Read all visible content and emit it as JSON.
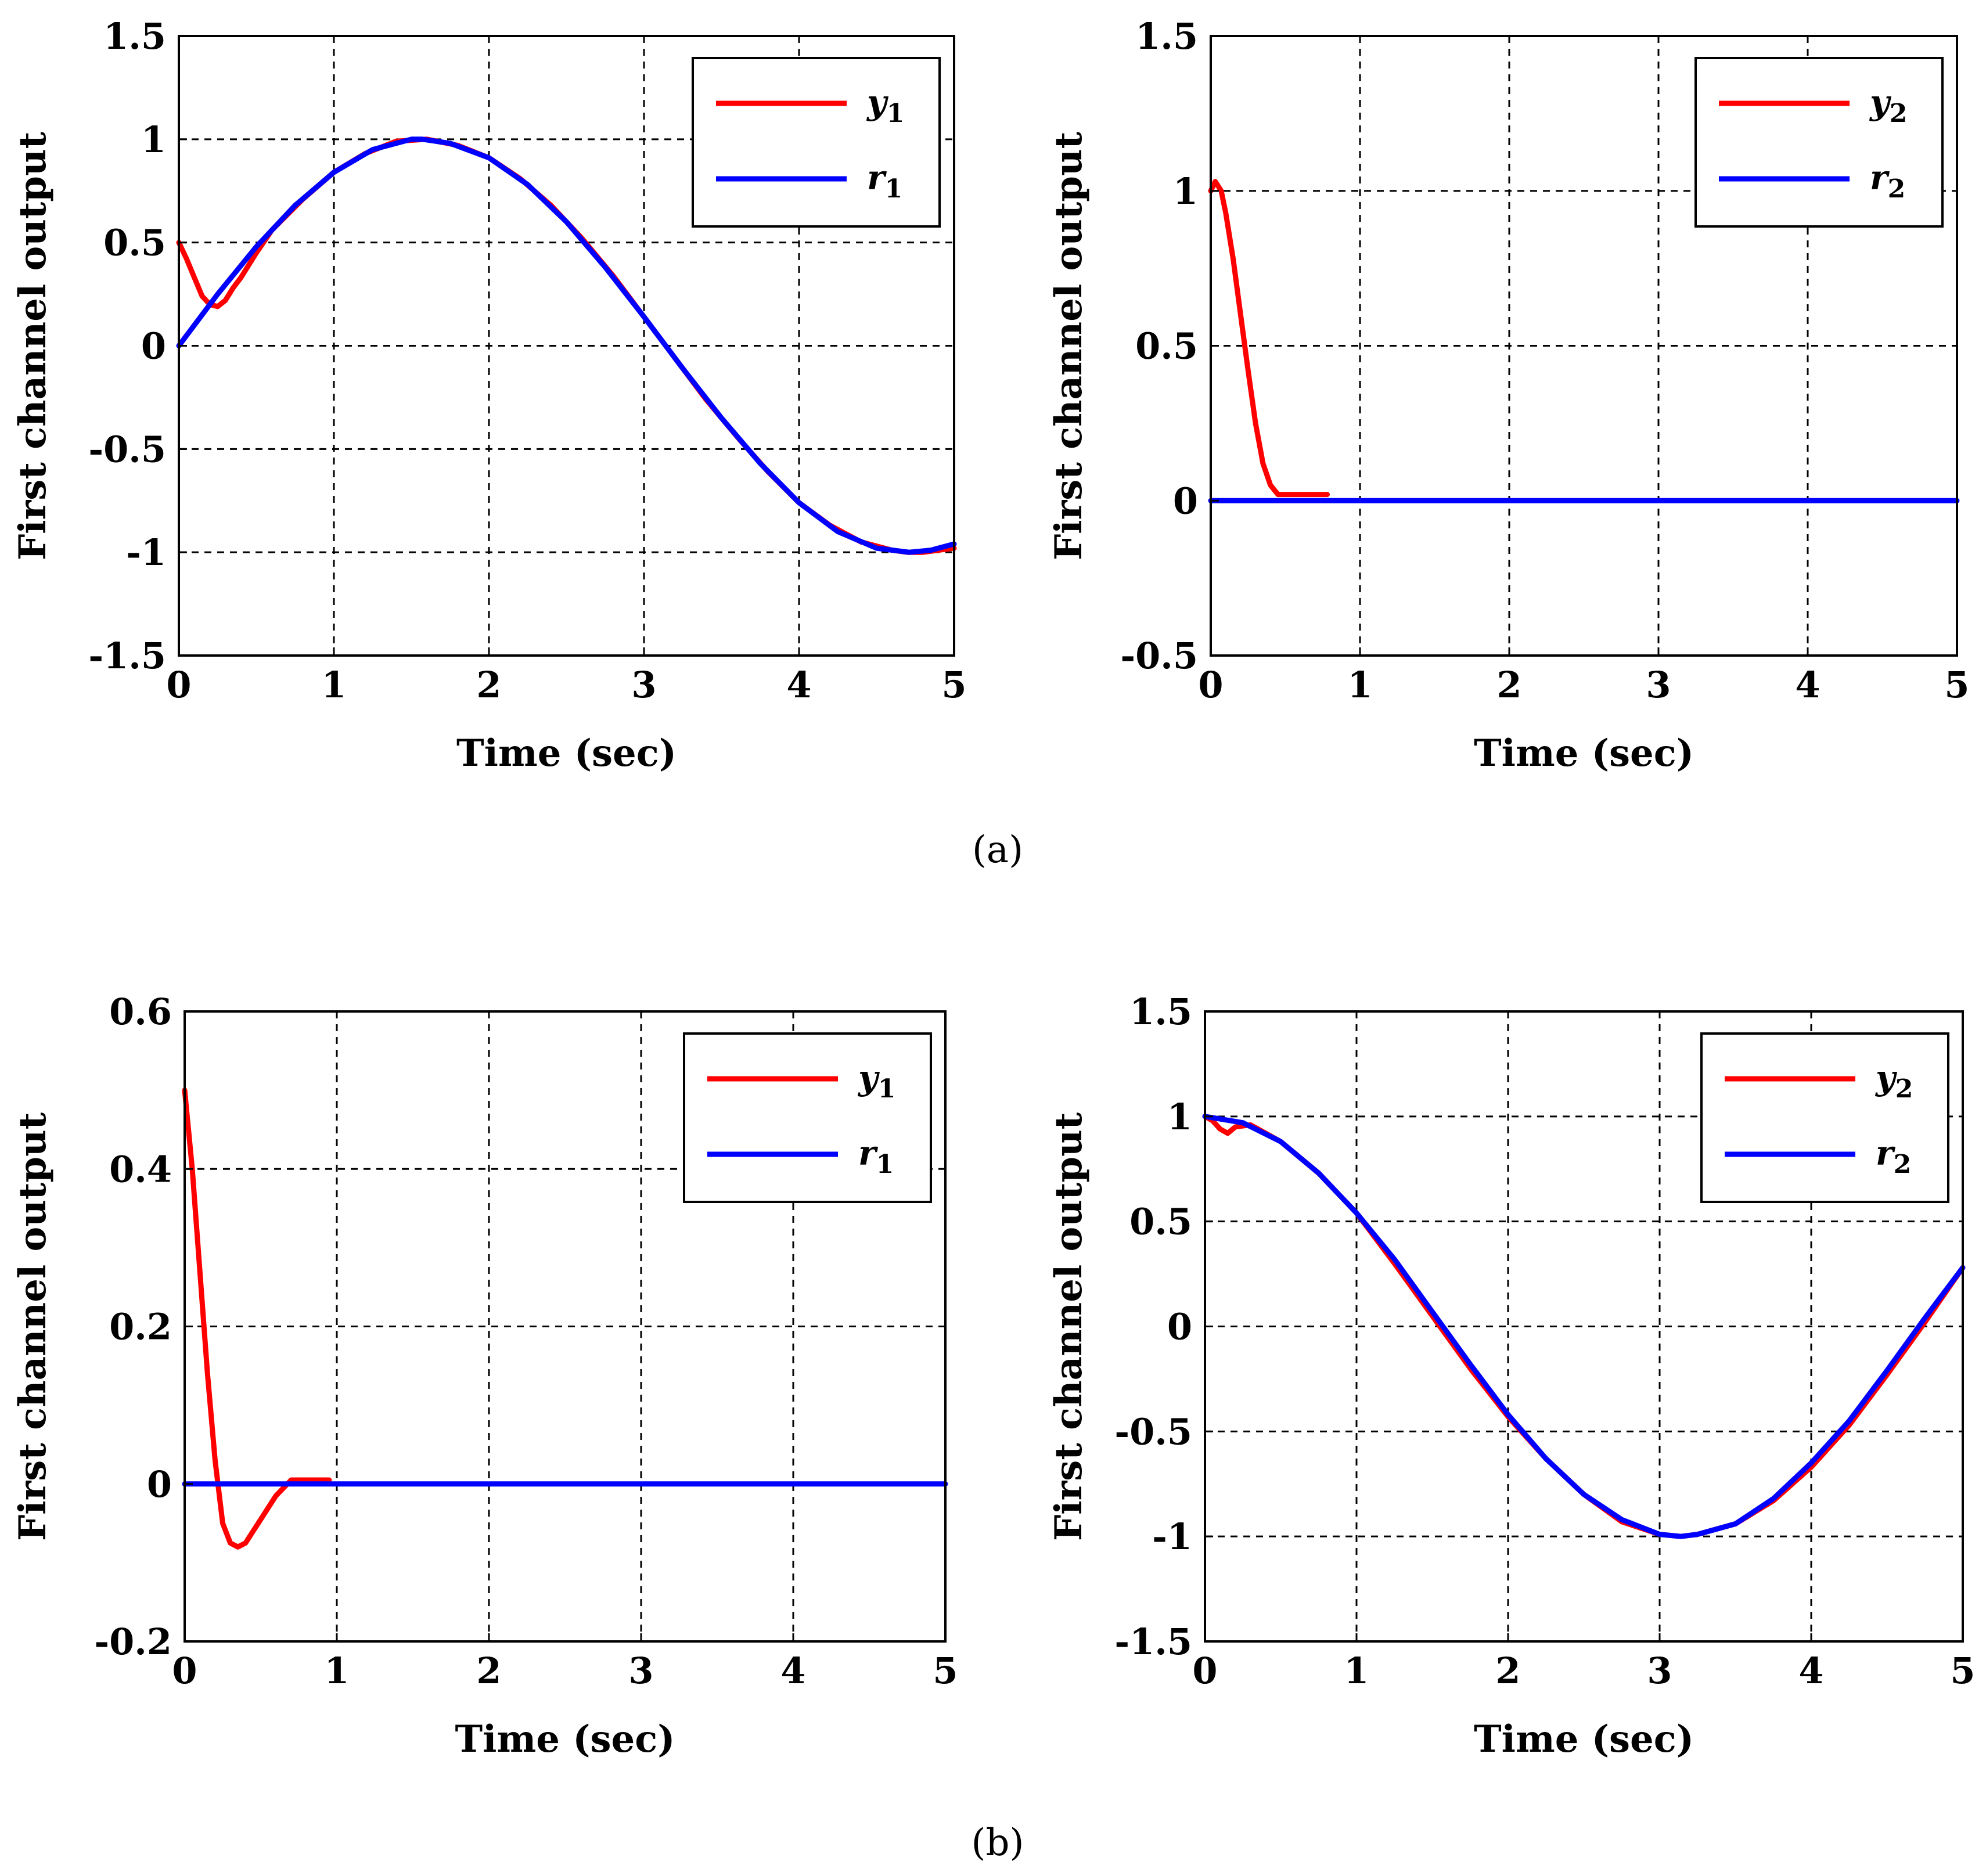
{
  "figure": {
    "captions": [
      "(a)",
      "(b)"
    ]
  },
  "colors": {
    "y": "#ff0000",
    "r": "#0000ff",
    "grid": "#000000",
    "axes": "#000000"
  },
  "chart_data": [
    {
      "id": "a1",
      "type": "line",
      "title": "",
      "xlabel": "Time (sec)",
      "ylabel": "First channel output",
      "xlim": [
        0,
        5
      ],
      "ylim": [
        -1.5,
        1.5
      ],
      "xticks": [
        0,
        1,
        2,
        3,
        4,
        5
      ],
      "xtick_labels": [
        "0",
        "1",
        "2",
        "3",
        "4",
        "5"
      ],
      "yticks": [
        1.5,
        1,
        0.5,
        0,
        -0.5,
        -1,
        -1.5
      ],
      "ytick_labels": [
        "1.5",
        "1",
        "0.5",
        "0",
        "-0.5",
        "-1",
        "-1.5"
      ],
      "grid": true,
      "legend": "top-right",
      "series": [
        {
          "name": "y",
          "sub": "1",
          "color": "#ff0000",
          "x": [
            0,
            0.05,
            0.1,
            0.15,
            0.2,
            0.25,
            0.3,
            0.35,
            0.4,
            0.5,
            0.6,
            0.8,
            1.0,
            1.2,
            1.4,
            1.6,
            1.8,
            2.0,
            2.2,
            2.4,
            2.6,
            2.8,
            3.0,
            3.2,
            3.4,
            3.6,
            3.8,
            4.0,
            4.2,
            4.4,
            4.6,
            4.7,
            4.8,
            4.9,
            5.0
          ],
          "y": [
            0.5,
            0.42,
            0.33,
            0.24,
            0.2,
            0.19,
            0.22,
            0.28,
            0.33,
            0.45,
            0.56,
            0.71,
            0.84,
            0.93,
            0.99,
            1.0,
            0.97,
            0.91,
            0.81,
            0.68,
            0.52,
            0.34,
            0.14,
            -0.06,
            -0.26,
            -0.44,
            -0.61,
            -0.76,
            -0.87,
            -0.95,
            -0.99,
            -1.0,
            -1.0,
            -0.99,
            -0.98
          ]
        },
        {
          "name": "r",
          "sub": "1",
          "color": "#0000ff",
          "x": [
            0,
            0.25,
            0.5,
            0.75,
            1.0,
            1.25,
            1.5,
            1.57,
            1.75,
            2.0,
            2.25,
            2.5,
            2.75,
            3.0,
            3.14,
            3.25,
            3.5,
            3.75,
            4.0,
            4.25,
            4.5,
            4.71,
            4.85,
            5.0
          ],
          "y": [
            0.0,
            0.25,
            0.48,
            0.68,
            0.84,
            0.95,
            1.0,
            1.0,
            0.98,
            0.91,
            0.78,
            0.6,
            0.38,
            0.14,
            0.0,
            -0.11,
            -0.35,
            -0.57,
            -0.76,
            -0.9,
            -0.98,
            -1.0,
            -0.99,
            -0.96
          ]
        }
      ]
    },
    {
      "id": "a2",
      "type": "line",
      "title": "",
      "xlabel": "Time (sec)",
      "ylabel": "First channel output",
      "xlim": [
        0,
        5
      ],
      "ylim": [
        -0.5,
        1.5
      ],
      "xticks": [
        0,
        1,
        2,
        3,
        4,
        5
      ],
      "xtick_labels": [
        "0",
        "1",
        "2",
        "3",
        "4",
        "5"
      ],
      "yticks": [
        1.5,
        1,
        0.5,
        0,
        -0.5
      ],
      "ytick_labels": [
        "1.5",
        "1",
        "0.5",
        "0",
        "-0.5"
      ],
      "grid": true,
      "legend": "top-right",
      "series": [
        {
          "name": "y",
          "sub": "2",
          "color": "#ff0000",
          "x": [
            0,
            0.03,
            0.07,
            0.1,
            0.15,
            0.2,
            0.25,
            0.3,
            0.35,
            0.4,
            0.45,
            0.5,
            0.6,
            0.7,
            0.78
          ],
          "y": [
            1.0,
            1.03,
            1.0,
            0.93,
            0.78,
            0.6,
            0.42,
            0.25,
            0.12,
            0.05,
            0.02,
            0.02,
            0.02,
            0.02,
            0.02
          ]
        },
        {
          "name": "r",
          "sub": "2",
          "color": "#0000ff",
          "x": [
            0,
            5
          ],
          "y": [
            0,
            0
          ]
        }
      ]
    },
    {
      "id": "b1",
      "type": "line",
      "title": "",
      "xlabel": "Time (sec)",
      "ylabel": "First channel output",
      "xlim": [
        0,
        5
      ],
      "ylim": [
        -0.2,
        0.6
      ],
      "xticks": [
        0,
        1,
        2,
        3,
        4,
        5
      ],
      "xtick_labels": [
        "0",
        "1",
        "2",
        "3",
        "4",
        "5"
      ],
      "yticks": [
        0.6,
        0.4,
        0.2,
        0,
        -0.2
      ],
      "ytick_labels": [
        "0.6",
        "0.4",
        "0.2",
        "0",
        "-0.2"
      ],
      "grid": true,
      "legend": "top-right",
      "series": [
        {
          "name": "y",
          "sub": "1",
          "color": "#ff0000",
          "x": [
            0,
            0.05,
            0.1,
            0.15,
            0.2,
            0.25,
            0.3,
            0.35,
            0.4,
            0.45,
            0.5,
            0.55,
            0.6,
            0.65,
            0.7,
            0.8,
            0.95
          ],
          "y": [
            0.5,
            0.4,
            0.27,
            0.14,
            0.03,
            -0.05,
            -0.075,
            -0.08,
            -0.075,
            -0.06,
            -0.045,
            -0.03,
            -0.015,
            -0.005,
            0.005,
            0.005,
            0.005
          ]
        },
        {
          "name": "r",
          "sub": "1",
          "color": "#0000ff",
          "x": [
            0,
            5
          ],
          "y": [
            0,
            0
          ]
        }
      ]
    },
    {
      "id": "b2",
      "type": "line",
      "title": "",
      "xlabel": "Time (sec)",
      "ylabel": "First channel output",
      "xlim": [
        0,
        5
      ],
      "ylim": [
        -1.5,
        1.5
      ],
      "xticks": [
        0,
        1,
        2,
        3,
        4,
        5
      ],
      "xtick_labels": [
        "0",
        "1",
        "2",
        "3",
        "4",
        "5"
      ],
      "yticks": [
        1.5,
        1,
        0.5,
        0,
        -0.5,
        -1,
        -1.5
      ],
      "ytick_labels": [
        "1.5",
        "1",
        "0.5",
        "0",
        "-0.5",
        "-1",
        "-1.5"
      ],
      "grid": true,
      "legend": "top-right",
      "series": [
        {
          "name": "y",
          "sub": "2",
          "color": "#ff0000",
          "x": [
            0,
            0.05,
            0.1,
            0.15,
            0.2,
            0.3,
            0.5,
            0.75,
            1.0,
            1.25,
            1.5,
            1.75,
            2.0,
            2.25,
            2.5,
            2.75,
            3.0,
            3.14,
            3.25,
            3.5,
            3.75,
            4.0,
            4.25,
            4.5,
            4.75,
            5.0
          ],
          "y": [
            1.0,
            0.98,
            0.94,
            0.92,
            0.95,
            0.96,
            0.88,
            0.73,
            0.54,
            0.3,
            0.05,
            -0.2,
            -0.43,
            -0.63,
            -0.8,
            -0.93,
            -0.99,
            -1.0,
            -0.99,
            -0.94,
            -0.83,
            -0.67,
            -0.47,
            -0.23,
            0.02,
            0.28
          ]
        },
        {
          "name": "r",
          "sub": "2",
          "color": "#0000ff",
          "x": [
            0,
            0.25,
            0.5,
            0.75,
            1.0,
            1.25,
            1.5,
            1.75,
            2.0,
            2.25,
            2.5,
            2.75,
            3.0,
            3.14,
            3.25,
            3.5,
            3.75,
            4.0,
            4.25,
            4.5,
            4.75,
            5.0
          ],
          "y": [
            1.0,
            0.97,
            0.88,
            0.73,
            0.54,
            0.32,
            0.07,
            -0.18,
            -0.42,
            -0.63,
            -0.8,
            -0.92,
            -0.99,
            -1.0,
            -0.99,
            -0.94,
            -0.82,
            -0.65,
            -0.45,
            -0.21,
            0.04,
            0.28
          ]
        }
      ]
    }
  ]
}
